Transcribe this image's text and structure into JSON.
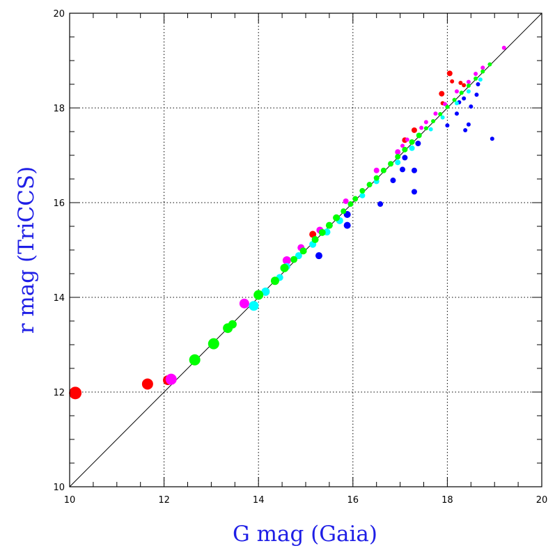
{
  "chart_data": {
    "type": "scatter",
    "title": "",
    "xlabel": "G mag (Gaia)",
    "ylabel": "r mag (TriCCS)",
    "xlim": [
      10,
      20
    ],
    "ylim": [
      10,
      20
    ],
    "xticks": [
      "10",
      "12",
      "14",
      "16",
      "18",
      "20"
    ],
    "yticks": [
      "10",
      "12",
      "14",
      "16",
      "18",
      "20"
    ],
    "grid": true,
    "reference_line": "y = x",
    "series": [
      {
        "color": "#ff0000",
        "points": [
          [
            10.12,
            11.98,
            9
          ],
          [
            11.65,
            12.17,
            8
          ],
          [
            12.08,
            12.25,
            7
          ],
          [
            15.15,
            15.33,
            5
          ],
          [
            17.1,
            17.32,
            4
          ],
          [
            17.3,
            17.53,
            4
          ],
          [
            17.88,
            18.3,
            4
          ],
          [
            17.9,
            18.1,
            3
          ],
          [
            18.05,
            18.73,
            4
          ],
          [
            18.1,
            18.56,
            3
          ],
          [
            18.28,
            18.53,
            3
          ],
          [
            18.35,
            18.48,
            3
          ]
        ]
      },
      {
        "color": "#ff00ff",
        "points": [
          [
            12.15,
            12.27,
            8
          ],
          [
            13.7,
            13.87,
            7
          ],
          [
            14.6,
            14.78,
            6
          ],
          [
            14.9,
            15.05,
            5
          ],
          [
            15.3,
            15.42,
            5
          ],
          [
            15.85,
            16.03,
            4
          ],
          [
            16.5,
            16.68,
            4
          ],
          [
            16.95,
            17.07,
            4
          ],
          [
            17.05,
            17.2,
            3
          ],
          [
            17.15,
            17.33,
            3
          ],
          [
            17.45,
            17.58,
            3
          ],
          [
            17.55,
            17.7,
            3
          ],
          [
            17.75,
            17.88,
            3
          ],
          [
            17.95,
            18.08,
            3
          ],
          [
            18.2,
            18.35,
            3
          ],
          [
            18.45,
            18.55,
            3
          ],
          [
            18.6,
            18.72,
            3
          ],
          [
            18.75,
            18.85,
            3
          ],
          [
            19.2,
            19.27,
            3
          ]
        ]
      },
      {
        "color": "#0000ff",
        "points": [
          [
            15.28,
            14.88,
            5
          ],
          [
            15.88,
            15.75,
            5
          ],
          [
            15.88,
            15.52,
            5
          ],
          [
            16.58,
            15.97,
            4
          ],
          [
            16.85,
            16.47,
            4
          ],
          [
            17.05,
            16.7,
            4
          ],
          [
            17.1,
            16.95,
            4
          ],
          [
            17.3,
            16.23,
            4
          ],
          [
            17.3,
            16.68,
            4
          ],
          [
            17.38,
            17.25,
            4
          ],
          [
            18.0,
            17.63,
            3
          ],
          [
            18.2,
            17.88,
            3
          ],
          [
            18.25,
            18.12,
            3
          ],
          [
            18.35,
            18.2,
            3
          ],
          [
            18.38,
            17.53,
            3
          ],
          [
            18.45,
            17.65,
            3
          ],
          [
            18.5,
            18.03,
            3
          ],
          [
            18.62,
            18.28,
            3
          ],
          [
            18.65,
            18.5,
            3
          ],
          [
            18.95,
            17.35,
            3
          ]
        ]
      },
      {
        "color": "#00ffff",
        "points": [
          [
            13.9,
            13.82,
            7
          ],
          [
            14.15,
            14.12,
            6
          ],
          [
            14.45,
            14.42,
            5
          ],
          [
            14.6,
            14.65,
            5
          ],
          [
            14.85,
            14.88,
            5
          ],
          [
            15.15,
            15.12,
            5
          ],
          [
            15.45,
            15.38,
            5
          ],
          [
            15.72,
            15.62,
            5
          ],
          [
            16.2,
            16.15,
            4
          ],
          [
            16.5,
            16.45,
            4
          ],
          [
            16.95,
            16.85,
            4
          ],
          [
            17.25,
            17.15,
            4
          ],
          [
            17.65,
            17.55,
            3
          ],
          [
            17.9,
            17.8,
            3
          ],
          [
            18.2,
            18.1,
            3
          ],
          [
            18.45,
            18.35,
            3
          ],
          [
            18.7,
            18.6,
            3
          ]
        ]
      },
      {
        "color": "#00ff00",
        "points": [
          [
            12.65,
            12.68,
            8
          ],
          [
            13.05,
            13.02,
            8
          ],
          [
            13.35,
            13.35,
            7
          ],
          [
            13.45,
            13.43,
            6
          ],
          [
            14.0,
            14.05,
            7
          ],
          [
            14.35,
            14.35,
            6
          ],
          [
            14.55,
            14.62,
            6
          ],
          [
            14.75,
            14.8,
            5
          ],
          [
            14.95,
            14.98,
            5
          ],
          [
            15.2,
            15.22,
            5
          ],
          [
            15.35,
            15.37,
            5
          ],
          [
            15.5,
            15.52,
            5
          ],
          [
            15.65,
            15.68,
            5
          ],
          [
            15.8,
            15.82,
            4
          ],
          [
            15.95,
            15.97,
            4
          ],
          [
            16.05,
            16.08,
            4
          ],
          [
            16.2,
            16.25,
            4
          ],
          [
            16.35,
            16.38,
            4
          ],
          [
            16.5,
            16.52,
            4
          ],
          [
            16.65,
            16.68,
            4
          ],
          [
            16.8,
            16.82,
            4
          ],
          [
            16.95,
            16.97,
            4
          ],
          [
            17.1,
            17.12,
            4
          ],
          [
            17.25,
            17.28,
            4
          ],
          [
            17.4,
            17.42,
            4
          ],
          [
            17.55,
            17.57,
            3
          ],
          [
            17.7,
            17.72,
            3
          ],
          [
            17.85,
            17.87,
            3
          ],
          [
            18.0,
            18.02,
            3
          ],
          [
            18.15,
            18.17,
            3
          ],
          [
            18.3,
            18.32,
            3
          ],
          [
            18.45,
            18.47,
            3
          ],
          [
            18.6,
            18.62,
            3
          ],
          [
            18.75,
            18.77,
            3
          ],
          [
            18.9,
            18.92,
            3
          ]
        ]
      }
    ]
  }
}
